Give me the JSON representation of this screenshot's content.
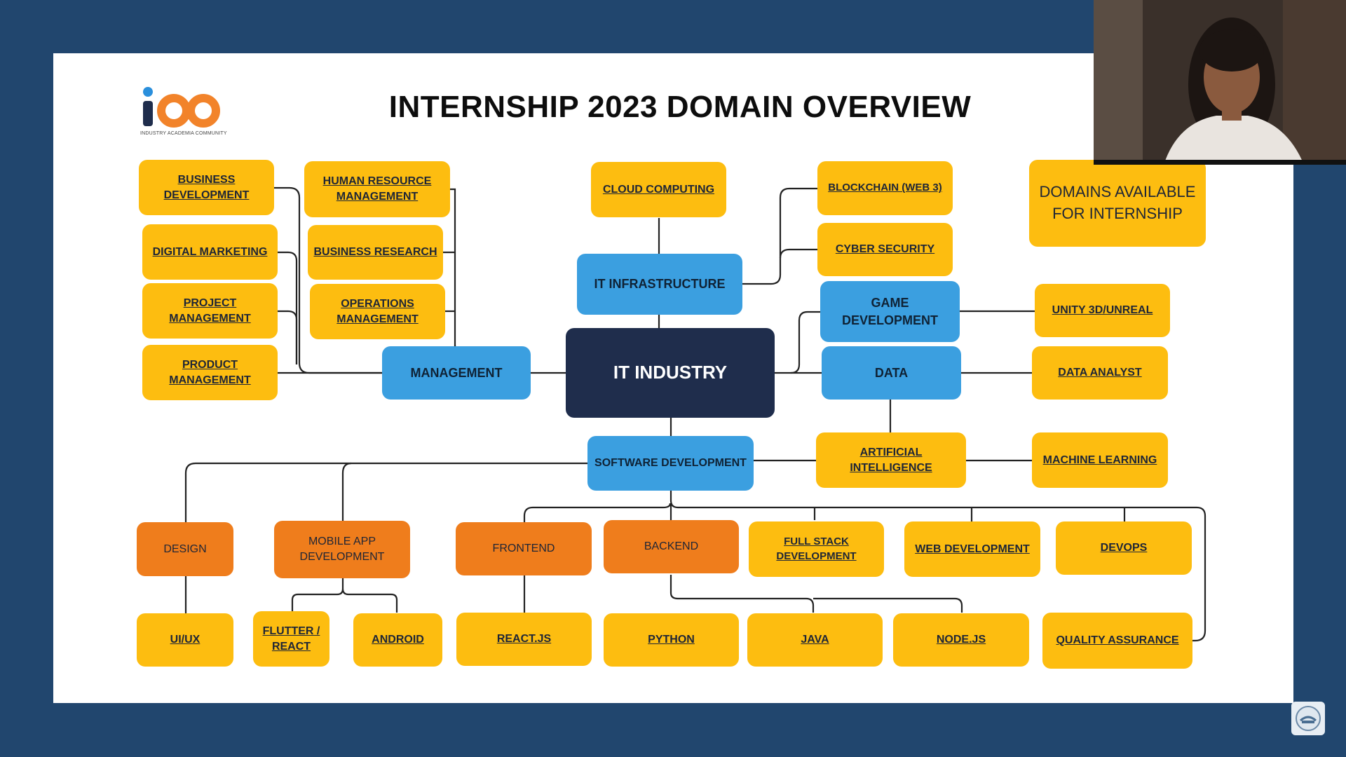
{
  "title": "INTERNSHIP 2023 DOMAIN OVERVIEW",
  "logo": {
    "text": "ioo",
    "tagline": "INDUSTRY ACADEMIA COMMUNITY"
  },
  "legend": "DOMAINS AVAILABLE FOR INTERNSHIP",
  "root": "IT INDUSTRY",
  "categories": {
    "management": "MANAGEMENT",
    "it_infrastructure": "IT INFRASTRUCTURE",
    "game_development": "GAME DEVELOPMENT",
    "data": "DATA",
    "software_development": "SOFTWARE DEVELOPMENT"
  },
  "management_domains": [
    "BUSINESS DEVELOPMENT",
    "DIGITAL MARKETING",
    "PROJECT MANAGEMENT",
    "PRODUCT MANAGEMENT",
    "HUMAN RESOURCE MANAGEMENT",
    "BUSINESS RESEARCH",
    "OPERATIONS MANAGEMENT"
  ],
  "infrastructure_domains": [
    "CLOUD COMPUTING",
    "BLOCKCHAIN (WEB 3)",
    "CYBER SECURITY"
  ],
  "game_domains": [
    "UNITY 3D/UNREAL"
  ],
  "data_domains": [
    "DATA ANALYST",
    "ARTIFICIAL INTELLIGENCE",
    "MACHINE LEARNING"
  ],
  "software_groups": [
    "DESIGN",
    "MOBILE APP DEVELOPMENT",
    "FRONTEND",
    "BACKEND"
  ],
  "software_domains": [
    "FULL STACK DEVELOPMENT",
    "WEB DEVELOPMENT",
    "DEVOPS",
    "QUALITY ASSURANCE"
  ],
  "software_leaf_domains": [
    "UI/UX",
    "FLUTTER / REACT",
    "ANDROID",
    "REACT.JS",
    "PYTHON",
    "JAVA",
    "NODE.JS"
  ],
  "colors": {
    "background": "#21466e",
    "domain": "#fdbd10",
    "category": "#3b9fe0",
    "group": "#ef7d1c",
    "root": "#1f2d4c"
  }
}
